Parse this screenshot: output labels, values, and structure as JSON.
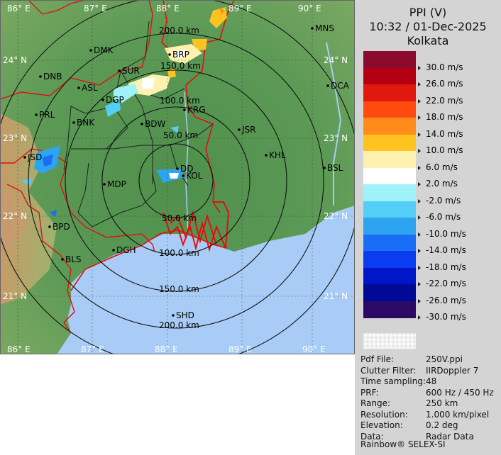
{
  "header": {
    "product": "PPI (V)",
    "datetime": "10:32 / 01-Dec-2025",
    "station": "Kolkata"
  },
  "legend": {
    "items": [
      {
        "label": "30.0 m/s",
        "color": "#8b0a2e"
      },
      {
        "label": "26.0 m/s",
        "color": "#b30012"
      },
      {
        "label": "22.0 m/s",
        "color": "#e0180e"
      },
      {
        "label": "18.0 m/s",
        "color": "#ff4b10"
      },
      {
        "label": "14.0 m/s",
        "color": "#ff8c1a"
      },
      {
        "label": "10.0 m/s",
        "color": "#ffc31f"
      },
      {
        "label": "6.0 m/s",
        "color": "#fff2b0"
      },
      {
        "label": "2.0 m/s",
        "color": "#ffffff"
      },
      {
        "label": "-2.0 m/s",
        "color": "#9ff2fa"
      },
      {
        "label": "-6.0 m/s",
        "color": "#55cef5"
      },
      {
        "label": "-10.0 m/s",
        "color": "#2ea4f0"
      },
      {
        "label": "-14.0 m/s",
        "color": "#1a6ef5"
      },
      {
        "label": "-18.0 m/s",
        "color": "#0a3cf0"
      },
      {
        "label": "-22.0 m/s",
        "color": "#0016c8"
      },
      {
        "label": "-26.0 m/s",
        "color": "#000a96"
      },
      {
        "label": "-30.0 m/s",
        "color": "#2a0a64"
      }
    ]
  },
  "info": [
    {
      "key": "Pdf File:",
      "value": "250V.ppi"
    },
    {
      "key": "Clutter Filter:",
      "value": "IIRDoppler 7"
    },
    {
      "key": "Time sampling:",
      "value": "48"
    },
    {
      "key": "PRF:",
      "value": "600 Hz / 450 Hz"
    },
    {
      "key": "Range:",
      "value": "250 km"
    },
    {
      "key": "Resolution:",
      "value": "1.000 km/pixel"
    },
    {
      "key": "Elevation:",
      "value": "0.2 deg"
    },
    {
      "key": "Data:",
      "value": "Radar Data"
    }
  ],
  "footer": "Rainbow® SELEX-SI",
  "map": {
    "lon_labels": [
      "86° E",
      "87° E",
      "88° E",
      "89° E",
      "90° E"
    ],
    "lat_labels": [
      "24° N",
      "23° N",
      "22° N",
      "21° N"
    ],
    "range_rings": [
      "50.0 km",
      "100.0 km",
      "150.0 km",
      "200.0 km"
    ],
    "cities": [
      "MNS",
      "DMK",
      "BRP",
      "SUR",
      "DNB",
      "ASL",
      "DCA",
      "DGP",
      "KRG",
      "PRL",
      "BNK",
      "BDW",
      "JSR",
      "KHL",
      "JSD",
      "BSL",
      "DD",
      "KOL",
      "MDP",
      "BPD",
      "DGH",
      "BLS",
      "SHD"
    ],
    "colors": {
      "sea": "#a8ccf5",
      "land": "#5f9a58",
      "boundary": "#e01010",
      "district": "#202020",
      "ring": "#111111"
    }
  }
}
